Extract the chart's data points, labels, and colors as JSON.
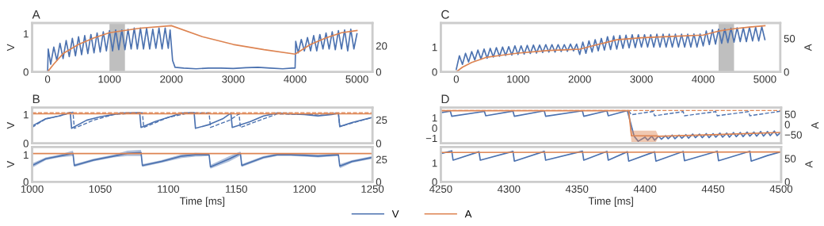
{
  "chart_data": [
    {
      "type": "line",
      "title": "A",
      "ylabel": "V",
      "xlim": [
        -250,
        5250
      ],
      "xticks": [
        0,
        1000,
        2000,
        3000,
        4000,
        5000
      ],
      "ylim": [
        0,
        1.28
      ],
      "yticks": [
        0,
        1
      ],
      "y2lim": [
        0,
        37.4
      ],
      "y2ticks": [
        0,
        20
      ],
      "grid": false,
      "legend": "bottom",
      "bands": [
        {
          "axis": "x",
          "from": 1000,
          "to": 1250,
          "color": "#bfbfbf"
        }
      ],
      "series": [
        {
          "name": "V",
          "color": "#4c72b0",
          "x": [
            0,
            10,
            50,
            100,
            150,
            200,
            250,
            300,
            350,
            400,
            450,
            500,
            550,
            600,
            650,
            700,
            750,
            800,
            850,
            900,
            950,
            1000,
            1050,
            1100,
            1150,
            1200,
            1250,
            1300,
            1350,
            1400,
            1450,
            1500,
            1550,
            1600,
            1650,
            1700,
            1750,
            1800,
            1850,
            1900,
            1950,
            1980,
            2020,
            2060,
            2200,
            2400,
            2600,
            2800,
            3000,
            3200,
            3400,
            3600,
            3800,
            3950,
            4000,
            4010,
            4050,
            4100,
            4150,
            4200,
            4250,
            4300,
            4350,
            4400,
            4450,
            4500,
            4550,
            4600,
            4650,
            4700,
            4750,
            4800,
            4850,
            4900,
            4950,
            5000
          ],
          "values": [
            0.0,
            0.6,
            0.2,
            0.65,
            0.3,
            0.75,
            0.35,
            0.82,
            0.4,
            0.88,
            0.42,
            0.92,
            0.45,
            0.95,
            0.48,
            0.98,
            0.5,
            1.02,
            0.52,
            1.05,
            0.55,
            1.08,
            0.55,
            1.1,
            0.58,
            1.1,
            0.58,
            1.12,
            0.6,
            1.15,
            0.6,
            1.15,
            0.6,
            1.15,
            0.6,
            1.12,
            0.62,
            1.15,
            0.6,
            1.15,
            0.62,
            1.1,
            0.3,
            0.12,
            0.1,
            0.08,
            0.1,
            0.1,
            0.09,
            0.11,
            0.12,
            0.1,
            0.08,
            0.1,
            0.1,
            0.8,
            0.5,
            0.85,
            0.55,
            0.9,
            0.55,
            0.95,
            0.55,
            0.98,
            0.6,
            1.02,
            0.6,
            1.05,
            0.58,
            1.08,
            0.6,
            1.1,
            0.55,
            1.12,
            0.6,
            1.0
          ]
        },
        {
          "name": "A",
          "color": "#dd8452",
          "axis": "y2",
          "x": [
            0,
            100,
            250,
            500,
            750,
            1000,
            1500,
            2000,
            2500,
            3000,
            3500,
            4000,
            4250,
            4500,
            4750,
            5000
          ],
          "values": [
            0,
            6,
            14,
            21,
            26,
            30,
            33.5,
            35.4,
            27,
            21,
            17,
            13.6,
            21,
            26,
            30,
            31.7
          ]
        }
      ]
    },
    {
      "type": "line",
      "title": "B",
      "ylabel": "V",
      "tick_labels": "y",
      "xlim": [
        1000,
        1250
      ],
      "xticks": [
        1000,
        1050,
        1100,
        1150,
        1200,
        1250
      ],
      "ylim": [
        0,
        1.24
      ],
      "yticks": [
        0,
        1
      ],
      "y2lim": [
        0,
        38
      ],
      "y2ticks": [
        0,
        25
      ],
      "grid": false,
      "series": [
        {
          "color": "#4c72b0",
          "line_style": "dashed",
          "x": [
            1000,
            1010,
            1020,
            1030,
            1031,
            1045,
            1060,
            1081,
            1082,
            1100,
            1115,
            1130,
            1131,
            1145,
            1152,
            1153,
            1170,
            1180,
            1200,
            1225,
            1226,
            1250
          ],
          "values": [
            0.55,
            0.85,
            0.95,
            1.08,
            0.52,
            0.8,
            1.0,
            1.06,
            0.55,
            0.9,
            1.05,
            1.05,
            0.55,
            0.8,
            1.02,
            0.55,
            0.85,
            1.02,
            1.0,
            1.04,
            0.58,
            0.9
          ]
        },
        {
          "color": "#4c72b0",
          "x": [
            1000,
            1010,
            1020,
            1028,
            1029,
            1040,
            1050,
            1060,
            1065,
            1079,
            1080,
            1090,
            1100,
            1110,
            1119,
            1120,
            1130,
            1140,
            1146,
            1147,
            1160,
            1170,
            1180,
            1190,
            1200,
            1210,
            1220,
            1225,
            1226,
            1235,
            1250
          ],
          "values": [
            0.6,
            0.85,
            0.95,
            1.07,
            0.52,
            0.8,
            0.92,
            1.0,
            1.05,
            1.06,
            0.55,
            0.75,
            0.9,
            1.05,
            1.06,
            0.52,
            0.65,
            0.85,
            1.05,
            0.55,
            0.75,
            0.95,
            1.05,
            1.02,
            1.0,
            0.95,
            1.0,
            1.04,
            0.58,
            0.72,
            0.9
          ]
        },
        {
          "color": "#dd8452",
          "axis": "y2",
          "line_style": "dashed",
          "x": [
            1000,
            1250
          ],
          "values": [
            32.5,
            32.5
          ]
        },
        {
          "color": "#dd8452",
          "axis": "y2",
          "x": [
            1000,
            1250
          ],
          "values": [
            31.4,
            31.4
          ]
        }
      ]
    },
    {
      "type": "line",
      "ylabel": "V",
      "xlabel": "Time [ms]",
      "xlim": [
        1000,
        1250
      ],
      "xticks": [
        1000,
        1050,
        1100,
        1150,
        1200,
        1250
      ],
      "ylim": [
        0,
        1.29
      ],
      "yticks": [
        0,
        1
      ],
      "y2lim": [
        0,
        39
      ],
      "y2ticks": [
        0,
        25
      ],
      "grid": false,
      "series": [
        {
          "color": "#4c72b0",
          "x": [
            1000,
            1010,
            1020,
            1030,
            1031,
            1045,
            1060,
            1070,
            1080,
            1081,
            1095,
            1110,
            1120,
            1130,
            1131,
            1145,
            1153,
            1154,
            1170,
            1180,
            1190,
            1200,
            1210,
            1225,
            1226,
            1235,
            1250
          ],
          "values": [
            0.6,
            0.85,
            0.95,
            1.05,
            0.6,
            0.8,
            0.95,
            1.05,
            1.08,
            0.6,
            0.75,
            0.95,
            1.0,
            1.0,
            0.55,
            0.85,
            1.05,
            0.6,
            0.9,
            1.0,
            1.0,
            0.98,
            0.95,
            1.0,
            0.58,
            0.75,
            0.9
          ],
          "lower": [
            0.52,
            0.8,
            0.9,
            0.95,
            0.55,
            0.75,
            0.9,
            0.95,
            0.95,
            0.55,
            0.7,
            0.88,
            0.93,
            0.95,
            0.48,
            0.75,
            0.97,
            0.55,
            0.85,
            0.95,
            0.95,
            0.93,
            0.9,
            0.95,
            0.5,
            0.7,
            0.85
          ],
          "upper": [
            0.68,
            0.9,
            1.0,
            1.15,
            0.65,
            0.85,
            1.0,
            1.15,
            1.18,
            0.65,
            0.8,
            1.02,
            1.07,
            1.05,
            0.62,
            0.95,
            1.12,
            0.65,
            0.95,
            1.05,
            1.05,
            1.03,
            1.0,
            1.05,
            0.65,
            0.8,
            0.95
          ]
        },
        {
          "color": "#dd8452",
          "axis": "y2",
          "x": [
            1000,
            1250
          ],
          "values": [
            31.6,
            31.6
          ]
        }
      ]
    },
    {
      "type": "line",
      "title": "C",
      "y2label": "A",
      "xlim": [
        -250,
        5250
      ],
      "xticks": [
        0,
        1000,
        2000,
        3000,
        4000,
        5000
      ],
      "ylim": [
        0,
        1.97
      ],
      "yticks": [
        0,
        1
      ],
      "y2lim": [
        0,
        73
      ],
      "y2ticks": [
        0,
        50
      ],
      "grid": false,
      "bands": [
        {
          "axis": "x",
          "from": 4250,
          "to": 4500,
          "color": "#bfbfbf"
        }
      ],
      "series": [
        {
          "color": "#4c72b0",
          "x": [
            0,
            50,
            100,
            150,
            200,
            250,
            300,
            350,
            400,
            450,
            500,
            550,
            600,
            650,
            700,
            750,
            800,
            850,
            900,
            950,
            1000,
            1050,
            1100,
            1150,
            1200,
            1250,
            1300,
            1350,
            1400,
            1450,
            1500,
            1550,
            1600,
            1650,
            1700,
            1750,
            1800,
            1850,
            1900,
            1950,
            2000,
            2050,
            2100,
            2150,
            2200,
            2250,
            2300,
            2350,
            2400,
            2450,
            2500,
            2550,
            2600,
            2650,
            2700,
            2750,
            2800,
            2850,
            2900,
            2950,
            3000,
            3050,
            3100,
            3150,
            3200,
            3250,
            3300,
            3350,
            3400,
            3450,
            3500,
            3550,
            3600,
            3650,
            3700,
            3750,
            3800,
            3850,
            3900,
            3950,
            4000,
            4050,
            4100,
            4150,
            4200,
            4250,
            4300,
            4350,
            4400,
            4450,
            4500,
            4550,
            4600,
            4650,
            4700,
            4750,
            4800,
            4850,
            4900,
            4950,
            5000
          ],
          "values": [
            0.1,
            0.65,
            0.3,
            0.75,
            0.4,
            0.82,
            0.48,
            0.88,
            0.52,
            0.92,
            0.55,
            0.95,
            0.6,
            0.98,
            0.63,
            1.0,
            0.66,
            1.02,
            0.68,
            1.05,
            0.7,
            1.05,
            0.72,
            1.07,
            0.74,
            1.08,
            0.76,
            1.08,
            0.78,
            1.1,
            0.8,
            1.1,
            0.8,
            1.1,
            0.82,
            1.1,
            0.83,
            1.12,
            0.85,
            1.12,
            0.7,
            1.2,
            0.75,
            1.25,
            0.8,
            1.3,
            0.85,
            1.35,
            0.88,
            1.42,
            0.9,
            1.45,
            0.92,
            1.47,
            0.95,
            1.48,
            0.97,
            1.5,
            0.98,
            1.5,
            1.0,
            1.5,
            1.0,
            1.5,
            1.0,
            1.52,
            1.0,
            1.52,
            1.0,
            1.52,
            1.0,
            1.52,
            1.0,
            1.52,
            1.0,
            1.52,
            1.0,
            1.53,
            1.0,
            1.53,
            1.05,
            1.65,
            1.1,
            1.7,
            1.12,
            1.72,
            1.15,
            1.74,
            1.18,
            1.76,
            1.2,
            1.78,
            1.22,
            1.78,
            1.22,
            1.8,
            1.25,
            1.8,
            1.25,
            1.82,
            1.3
          ]
        },
        {
          "color": "#dd8452",
          "axis": "y2",
          "x": [
            0,
            100,
            250,
            500,
            750,
            1000,
            1500,
            1750,
            2000,
            2300,
            2600,
            3000,
            3500,
            4000,
            4250,
            4500,
            4750,
            5000
          ],
          "values": [
            0,
            7,
            14,
            22,
            25,
            28,
            32,
            33,
            34,
            41,
            48,
            51,
            53,
            55,
            61,
            64.5,
            67,
            69
          ]
        }
      ]
    },
    {
      "type": "line",
      "title": "D",
      "y2label": "A",
      "tick_labels": "y",
      "xlim": [
        4250,
        4500
      ],
      "xticks": [
        4250,
        4300,
        4350,
        4400,
        4450,
        4500
      ],
      "ylim": [
        -1.5,
        2
      ],
      "yticks": [
        {
          "value": -1,
          "label": "−1"
        },
        0,
        1
      ],
      "y2lim": [
        -92,
        82
      ],
      "y2ticks": [
        {
          "value": -50,
          "label": "−50"
        },
        0,
        50
      ],
      "grid": false,
      "series": [
        {
          "color": "#4c72b0",
          "line_style": "dashed",
          "x": [
            4388,
            4390,
            4406,
            4407,
            4428,
            4429,
            4452,
            4453,
            4476,
            4477,
            4500
          ],
          "values": [
            1.7,
            1.3,
            1.62,
            1.2,
            1.6,
            1.2,
            1.6,
            1.2,
            1.6,
            1.2,
            1.65
          ]
        },
        {
          "color": "#4c72b0",
          "x": [
            4250,
            4257,
            4258,
            4282,
            4283,
            4303,
            4304,
            4326,
            4327,
            4354,
            4355,
            4372,
            4373,
            4387,
            4392,
            4395,
            4400,
            4402,
            4405,
            4407,
            4410,
            4412,
            4415,
            4417,
            4420,
            4422,
            4425,
            4427,
            4430,
            4432,
            4435,
            4437,
            4440,
            4442,
            4445,
            4447,
            4450,
            4452,
            4455,
            4457,
            4460,
            4462,
            4465,
            4467,
            4470,
            4472,
            4475,
            4477,
            4480,
            4482,
            4485,
            4487,
            4490,
            4492,
            4495,
            4497,
            4500
          ],
          "values": [
            1.5,
            1.65,
            1.15,
            1.62,
            1.2,
            1.65,
            1.15,
            1.68,
            1.15,
            1.68,
            1.15,
            1.68,
            1.2,
            1.7,
            -0.8,
            -1.3,
            -0.9,
            -1.2,
            -0.8,
            -1.2,
            -0.8,
            -1.1,
            -0.75,
            -1.05,
            -0.7,
            -1.05,
            -0.7,
            -1.0,
            -0.65,
            -1.0,
            -0.6,
            -0.95,
            -0.6,
            -0.95,
            -0.55,
            -0.95,
            -0.55,
            -0.9,
            -0.5,
            -0.9,
            -0.5,
            -0.9,
            -0.45,
            -0.85,
            -0.45,
            -0.85,
            -0.4,
            -0.8,
            -0.4,
            -0.8,
            -0.35,
            -0.8,
            -0.35,
            -0.75,
            -0.3,
            -0.75,
            -0.4
          ]
        },
        {
          "color": "#dd8452",
          "axis": "y2",
          "line_style": "dashed",
          "x": [
            4250,
            4500
          ],
          "values": [
            67.5,
            67.5
          ]
        },
        {
          "color": "#dd8452",
          "axis": "y2",
          "x": [
            4250,
            4388,
            4390,
            4408,
            4410,
            4450,
            4500
          ],
          "values": [
            67,
            67,
            -55,
            -56,
            -58,
            -50,
            -39
          ],
          "lower": [
            67,
            67,
            -85,
            -85,
            -58,
            -50,
            -39
          ],
          "upper": [
            67,
            67,
            -30,
            -30,
            -58,
            -50,
            -39
          ]
        }
      ]
    },
    {
      "type": "line",
      "xlabel": "Time [ms]",
      "y2label": "A",
      "xlim": [
        4250,
        4500
      ],
      "xticks": [
        4250,
        4300,
        4350,
        4400,
        4450,
        4500
      ],
      "ylim": [
        0,
        1.86
      ],
      "yticks": [
        0,
        1
      ],
      "y2lim": [
        0,
        75
      ],
      "y2ticks": [
        0,
        50
      ],
      "grid": false,
      "series": [
        {
          "color": "#4c72b0",
          "x": [
            4250,
            4258,
            4259,
            4278,
            4279,
            4303,
            4304,
            4326,
            4327,
            4354,
            4355,
            4372,
            4373,
            4387,
            4388,
            4407,
            4408,
            4428,
            4429,
            4453,
            4454,
            4477,
            4478,
            4490,
            4500
          ],
          "values": [
            1.5,
            1.65,
            1.15,
            1.6,
            1.15,
            1.62,
            1.1,
            1.62,
            1.15,
            1.63,
            1.15,
            1.62,
            1.15,
            1.6,
            1.1,
            1.6,
            1.1,
            1.62,
            1.12,
            1.63,
            1.12,
            1.63,
            1.1,
            1.4,
            1.6
          ]
        },
        {
          "color": "#dd8452",
          "axis": "y2",
          "x": [
            4250,
            4500
          ],
          "values": [
            63,
            64
          ]
        }
      ]
    }
  ]
}
